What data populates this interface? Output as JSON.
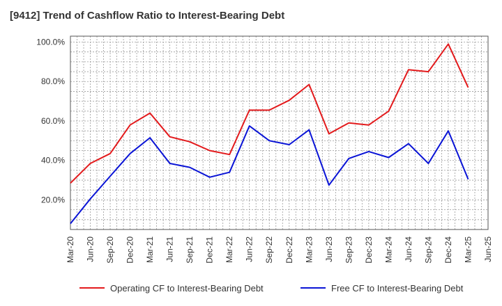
{
  "chart_data": {
    "type": "line",
    "title": "[9412]  Trend of Cashflow Ratio to Interest-Bearing Debt",
    "xlabel": "",
    "ylabel": "",
    "ylim": [
      5,
      103
    ],
    "y_ticks": [
      "20.0%",
      "40.0%",
      "60.0%",
      "80.0%",
      "100.0%"
    ],
    "y_tick_values": [
      20,
      40,
      60,
      80,
      100
    ],
    "x": [
      "Mar-20",
      "Jun-20",
      "Sep-20",
      "Dec-20",
      "Mar-21",
      "Jun-21",
      "Sep-21",
      "Dec-21",
      "Mar-22",
      "Jun-22",
      "Sep-22",
      "Dec-22",
      "Mar-23",
      "Jun-23",
      "Sep-23",
      "Dec-23",
      "Mar-24",
      "Jun-24",
      "Sep-24",
      "Dec-24",
      "Mar-25",
      "Jun-25"
    ],
    "grid": true,
    "legend_position": "bottom",
    "series": [
      {
        "name": "Operating CF to Interest-Bearing Debt",
        "color": "#e31a1c",
        "values": [
          28.5,
          38.5,
          43.5,
          58,
          64,
          52,
          49.5,
          45,
          43,
          65.5,
          65.5,
          70.5,
          78.5,
          53.5,
          59,
          58,
          65,
          86,
          85,
          99,
          77,
          null
        ]
      },
      {
        "name": "Free CF to Interest-Bearing Debt",
        "color": "#0a14d6",
        "values": [
          8,
          20.5,
          32,
          43.5,
          51.5,
          38.5,
          36.5,
          31.5,
          34,
          57.5,
          50,
          48,
          55.5,
          27.5,
          41,
          44.5,
          41.5,
          48.5,
          38.5,
          55,
          30.5,
          null
        ]
      }
    ]
  }
}
